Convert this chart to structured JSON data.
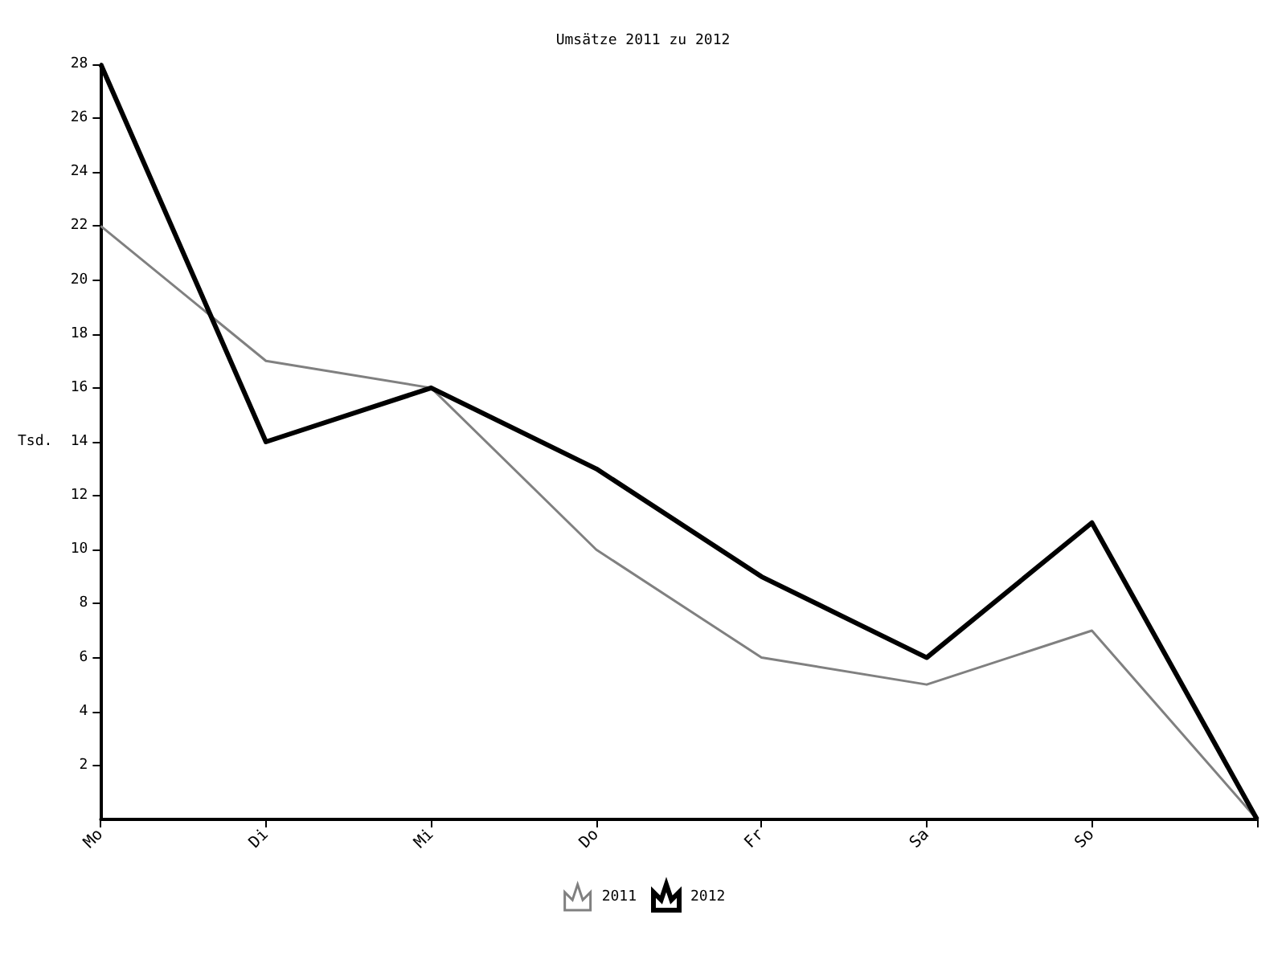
{
  "chart_data": {
    "type": "line",
    "title": "Umsätze 2011 zu 2012",
    "ylabel": "Tsd.",
    "categories": [
      "Mo",
      "Di",
      "Mi",
      "Do",
      "Fr",
      "Sa",
      "So",
      null
    ],
    "series": [
      {
        "name": "2011",
        "color": "#808080",
        "values": [
          22,
          17,
          16,
          10,
          6,
          5,
          7,
          0
        ]
      },
      {
        "name": "2012",
        "color": "#000000",
        "values": [
          28,
          14,
          16,
          13,
          9,
          6,
          11,
          0
        ]
      }
    ],
    "ylim": [
      0,
      28
    ],
    "yticks": [
      2,
      4,
      6,
      8,
      10,
      12,
      14,
      16,
      18,
      20,
      22,
      24,
      26,
      28
    ],
    "grid": false,
    "legend": "bottom",
    "marker": "none",
    "line_style": "solid"
  }
}
